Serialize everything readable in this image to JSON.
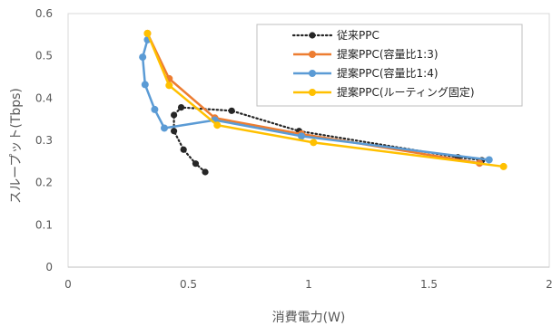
{
  "chart_data": {
    "type": "scatter",
    "title": "",
    "xlabel": "消費電力(W)",
    "ylabel": "スループット(Tbps)",
    "xlim": [
      0,
      2
    ],
    "ylim": [
      0,
      0.6
    ],
    "x_ticks": [
      0,
      0.5,
      1,
      1.5,
      2
    ],
    "y_ticks": [
      0,
      0.1,
      0.2,
      0.3,
      0.4,
      0.5,
      0.6
    ],
    "x_tick_labels": [
      "0",
      "0.5",
      "1",
      "1.5",
      "2"
    ],
    "y_tick_labels": [
      "0",
      "0.1",
      "0.2",
      "0.3",
      "0.4",
      "0.5",
      "0.6"
    ],
    "grid": false,
    "legend_position": "top-right",
    "series": [
      {
        "name": "従来PPC",
        "color": "#262626",
        "line_style": "dotted",
        "points": [
          [
            0.57,
            0.225
          ],
          [
            0.53,
            0.245
          ],
          [
            0.48,
            0.278
          ],
          [
            0.44,
            0.322
          ],
          [
            0.44,
            0.36
          ],
          [
            0.47,
            0.378
          ],
          [
            0.68,
            0.37
          ],
          [
            0.96,
            0.322
          ],
          [
            1.62,
            0.26
          ],
          [
            1.72,
            0.253
          ]
        ]
      },
      {
        "name": "提案PPC(容量比1:3)",
        "color": "#ED7D31",
        "line_style": "solid",
        "points": [
          [
            0.33,
            0.553
          ],
          [
            0.42,
            0.446
          ],
          [
            0.61,
            0.353
          ],
          [
            0.97,
            0.315
          ],
          [
            1.71,
            0.246
          ]
        ]
      },
      {
        "name": "提案PPC(容量比1:4)",
        "color": "#5B9BD5",
        "line_style": "solid",
        "points": [
          [
            0.33,
            0.538
          ],
          [
            0.31,
            0.497
          ],
          [
            0.32,
            0.432
          ],
          [
            0.36,
            0.373
          ],
          [
            0.4,
            0.329
          ],
          [
            0.61,
            0.348
          ],
          [
            0.97,
            0.31
          ],
          [
            1.75,
            0.254
          ]
        ]
      },
      {
        "name": "提案PPC(ルーティング固定)",
        "color": "#FFC000",
        "line_style": "solid",
        "points": [
          [
            0.33,
            0.553
          ],
          [
            0.42,
            0.43
          ],
          [
            0.62,
            0.336
          ],
          [
            1.02,
            0.295
          ],
          [
            1.81,
            0.238
          ]
        ]
      }
    ]
  }
}
